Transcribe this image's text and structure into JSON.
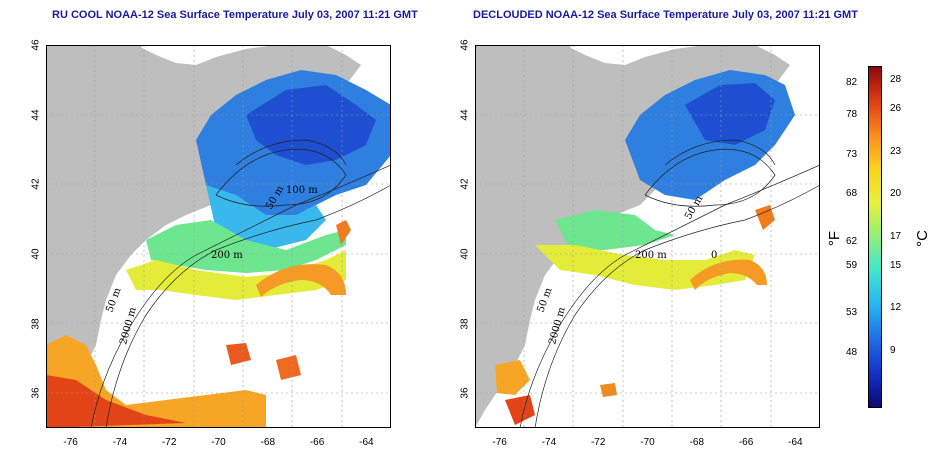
{
  "titles": {
    "left": "RU COOL NOAA-12 Sea Surface Temperature July 03, 2007 11:21 GMT",
    "right": "DECLOUDED NOAA-12 Sea Surface Temperature July 03, 2007 11:21 GMT"
  },
  "axes": {
    "lon_ticks": [
      "-76",
      "-74",
      "-72",
      "-70",
      "-68",
      "-66",
      "-64"
    ],
    "lat_ticks": [
      "36",
      "38",
      "40",
      "42",
      "44",
      "46"
    ],
    "xlim": [
      -77,
      -63
    ],
    "ylim": [
      35,
      46
    ]
  },
  "contour_labels": [
    "50 m",
    "100 m",
    "200 m",
    "2000 m",
    "50 m",
    "0"
  ],
  "colorbar": {
    "fahrenheit_unit": "°F",
    "celsius_unit": "°C",
    "fahrenheit_ticks": [
      "82",
      "78",
      "73",
      "68",
      "62",
      "59",
      "53",
      "48"
    ],
    "celsius_ticks": [
      "28",
      "26",
      "23",
      "20",
      "17",
      "15",
      "12",
      "9"
    ],
    "colors": [
      "#0a0a70",
      "#1530c8",
      "#1e6ee6",
      "#28b4f0",
      "#3ee6d2",
      "#8ef07a",
      "#e8f03c",
      "#fcd21e",
      "#f88c1e",
      "#e03c14",
      "#8c0a0a"
    ],
    "range_c": [
      5,
      29
    ]
  },
  "map_colors": {
    "land": "#bebebe",
    "cloud": "#ffffff",
    "grid": "#9a9a9a"
  }
}
